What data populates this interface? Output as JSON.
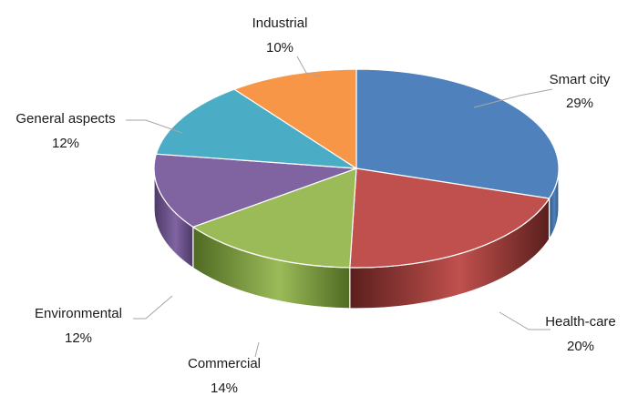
{
  "chart_data": {
    "type": "pie",
    "style": "3d",
    "title": "",
    "legend": "none",
    "unit": "%",
    "slices": [
      {
        "name": "Smart city",
        "value": 29,
        "label_value": "29%",
        "color": "#4f81bd",
        "side_color": "#2f5480"
      },
      {
        "name": "Health-care",
        "value": 20,
        "label_value": "20%",
        "color": "#c0504d",
        "side_color": "#5a1f1d"
      },
      {
        "name": "Commercial",
        "value": 14,
        "label_value": "14%",
        "color": "#9bbb59",
        "side_color": "#4f6a22"
      },
      {
        "name": "Environmental",
        "value": 12,
        "label_value": "12%",
        "color": "#8064a2",
        "side_color": "#4d3a66"
      },
      {
        "name": "General aspects",
        "value": 12,
        "label_value": "12%",
        "color": "#4bacc6",
        "side_color": "#2b6f80"
      },
      {
        "name": "Industrial",
        "value": 10,
        "label_value": "10%",
        "color": "#f79646",
        "side_color": "#a45d1f"
      }
    ]
  }
}
